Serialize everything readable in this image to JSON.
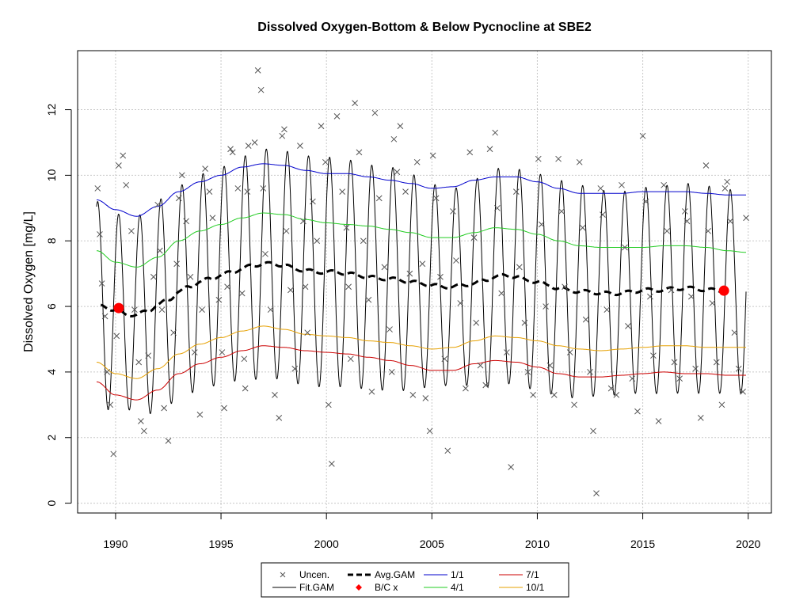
{
  "chart_data": {
    "type": "line",
    "title": "Dissolved Oxygen-Bottom & Below Pycnocline at SBE2",
    "xlabel": "",
    "ylabel": "Dissolved Oxygen [mg/L]",
    "xlim": [
      1988.2,
      2021.1
    ],
    "ylim": [
      -0.3,
      13.8
    ],
    "x_ticks": [
      1990,
      1995,
      2000,
      2005,
      2010,
      2015,
      2020
    ],
    "y_ticks": [
      0,
      2,
      4,
      6,
      8,
      10,
      12
    ],
    "grid": true,
    "legend_position": "bottom",
    "colors": {
      "avg": "#000000",
      "fit": "#000000",
      "q1": "#0000cc",
      "q4": "#22cc22",
      "q7": "#cc0000",
      "q10": "#e6a000",
      "points": "#555555",
      "bc": "#ff0000"
    },
    "avg_gam": {
      "x": [
        1989.3,
        1990,
        1990.5,
        1991,
        1991.5,
        1992,
        1992.5,
        1993,
        1993.5,
        1994,
        1994.5,
        1995,
        1995.5,
        1996,
        1996.5,
        1997,
        1997.5,
        1998,
        1998.5,
        1999,
        1999.5,
        2000,
        2000.5,
        2001,
        2001.5,
        2002,
        2002.5,
        2003,
        2003.5,
        2004,
        2004.5,
        2005,
        2005.5,
        2006,
        2006.5,
        2007,
        2007.5,
        2008,
        2008.5,
        2009,
        2009.5,
        2010,
        2010.5,
        2011,
        2011.5,
        2012,
        2012.5,
        2013,
        2013.5,
        2014,
        2014.5,
        2015,
        2015.5,
        2016,
        2016.5,
        2017,
        2017.5,
        2018,
        2018.5,
        2019
      ],
      "values": [
        6.0,
        5.9,
        5.75,
        5.75,
        5.85,
        6.05,
        6.2,
        6.45,
        6.6,
        6.75,
        6.85,
        6.95,
        7.05,
        7.15,
        7.25,
        7.3,
        7.3,
        7.25,
        7.15,
        7.1,
        7.05,
        7.05,
        7.05,
        7.0,
        6.95,
        6.9,
        6.85,
        6.85,
        6.8,
        6.75,
        6.7,
        6.65,
        6.6,
        6.6,
        6.65,
        6.7,
        6.8,
        6.9,
        6.95,
        6.9,
        6.8,
        6.75,
        6.65,
        6.55,
        6.5,
        6.45,
        6.45,
        6.4,
        6.4,
        6.4,
        6.45,
        6.5,
        6.5,
        6.5,
        6.55,
        6.55,
        6.55,
        6.5,
        6.5,
        6.45
      ]
    },
    "fit_gam": {
      "description_series": "seasonal oscillation around Avg.GAM",
      "x_start": 1989.1,
      "x_end": 2019.9,
      "period_years": 1.0,
      "phase_peak_year_fraction": 0.15,
      "amplitude": [
        [
          1989.1,
          3.2
        ],
        [
          1990.5,
          2.9
        ],
        [
          1992,
          3.2
        ],
        [
          1995,
          3.3
        ],
        [
          1997,
          3.5
        ],
        [
          2000,
          3.5
        ],
        [
          2003,
          3.4
        ],
        [
          2006,
          3.0
        ],
        [
          2008,
          3.3
        ],
        [
          2011,
          3.3
        ],
        [
          2014,
          3.1
        ],
        [
          2017,
          3.2
        ],
        [
          2019.9,
          3.1
        ]
      ]
    },
    "quantile_lines": [
      {
        "name": "1/1",
        "color_key": "q1",
        "x": [
          1989.1,
          1990,
          1991,
          1992,
          1993,
          1994,
          1995,
          1996,
          1997,
          1998,
          1999,
          2000,
          2001,
          2002,
          2003,
          2004,
          2005,
          2006,
          2007,
          2008,
          2009,
          2010,
          2011,
          2012,
          2013,
          2014,
          2015,
          2016,
          2017,
          2018,
          2019,
          2019.9
        ],
        "values": [
          9.25,
          8.95,
          8.75,
          9.05,
          9.5,
          9.8,
          10.0,
          10.25,
          10.35,
          10.3,
          10.15,
          10.05,
          10.05,
          9.95,
          9.85,
          9.75,
          9.6,
          9.65,
          9.85,
          9.95,
          9.95,
          9.8,
          9.6,
          9.45,
          9.45,
          9.45,
          9.5,
          9.5,
          9.5,
          9.45,
          9.4,
          9.4
        ]
      },
      {
        "name": "4/1",
        "color_key": "q4",
        "x": [
          1989.1,
          1990,
          1991,
          1992,
          1993,
          1994,
          1995,
          1996,
          1997,
          1998,
          1999,
          2000,
          2001,
          2002,
          2003,
          2004,
          2005,
          2006,
          2007,
          2008,
          2009,
          2010,
          2011,
          2012,
          2013,
          2014,
          2015,
          2016,
          2017,
          2018,
          2019,
          2019.9
        ],
        "values": [
          7.7,
          7.35,
          7.2,
          7.5,
          8.0,
          8.3,
          8.5,
          8.7,
          8.85,
          8.8,
          8.65,
          8.55,
          8.5,
          8.45,
          8.35,
          8.25,
          8.1,
          8.1,
          8.25,
          8.4,
          8.35,
          8.2,
          8.0,
          7.85,
          7.8,
          7.8,
          7.8,
          7.85,
          7.85,
          7.8,
          7.7,
          7.65
        ]
      },
      {
        "name": "7/1",
        "color_key": "q7",
        "x": [
          1989.1,
          1990,
          1991,
          1992,
          1993,
          1994,
          1995,
          1996,
          1997,
          1998,
          1999,
          2000,
          2001,
          2002,
          2003,
          2004,
          2005,
          2006,
          2007,
          2008,
          2009,
          2010,
          2011,
          2012,
          2013,
          2014,
          2015,
          2016,
          2017,
          2018,
          2019,
          2019.9
        ],
        "values": [
          3.7,
          3.3,
          3.15,
          3.45,
          3.95,
          4.25,
          4.45,
          4.65,
          4.8,
          4.75,
          4.65,
          4.6,
          4.55,
          4.45,
          4.35,
          4.2,
          4.05,
          4.05,
          4.25,
          4.35,
          4.3,
          4.15,
          3.95,
          3.85,
          3.85,
          3.9,
          3.95,
          4.0,
          3.95,
          3.95,
          3.9,
          3.9
        ]
      },
      {
        "name": "10/1",
        "color_key": "q10",
        "x": [
          1989.1,
          1990,
          1991,
          1992,
          1993,
          1994,
          1995,
          1996,
          1997,
          1998,
          1999,
          2000,
          2001,
          2002,
          2003,
          2004,
          2005,
          2006,
          2007,
          2008,
          2009,
          2010,
          2011,
          2012,
          2013,
          2014,
          2015,
          2016,
          2017,
          2018,
          2019,
          2019.9
        ],
        "values": [
          4.3,
          3.95,
          3.8,
          4.1,
          4.55,
          4.85,
          5.05,
          5.25,
          5.4,
          5.3,
          5.15,
          5.1,
          5.05,
          4.95,
          4.9,
          4.8,
          4.7,
          4.75,
          4.95,
          5.1,
          5.05,
          4.95,
          4.8,
          4.7,
          4.65,
          4.7,
          4.75,
          4.8,
          4.8,
          4.75,
          4.75,
          4.75
        ]
      }
    ],
    "bc_points": {
      "x": [
        1990.15,
        2018.85
      ],
      "values": [
        5.95,
        6.48
      ]
    },
    "scatter_points": {
      "x": [
        1989.15,
        1989.25,
        1989.35,
        1989.5,
        1989.6,
        1989.75,
        1989.9,
        1990.05,
        1990.15,
        1990.35,
        1990.5,
        1990.75,
        1990.9,
        1991.1,
        1991.2,
        1991.35,
        1991.55,
        1991.8,
        1992.0,
        1992.1,
        1992.2,
        1992.3,
        1992.5,
        1992.75,
        1992.9,
        1993.0,
        1993.15,
        1993.35,
        1993.55,
        1993.75,
        1994.0,
        1994.1,
        1994.25,
        1994.45,
        1994.6,
        1994.9,
        1995.05,
        1995.15,
        1995.3,
        1995.45,
        1995.55,
        1995.8,
        1996.0,
        1996.1,
        1996.15,
        1996.25,
        1996.3,
        1996.6,
        1996.75,
        1996.9,
        1997.0,
        1997.1,
        1997.35,
        1997.55,
        1997.75,
        1997.9,
        1998.0,
        1998.1,
        1998.3,
        1998.5,
        1998.75,
        1998.9,
        1999.0,
        1999.1,
        1999.35,
        1999.55,
        1999.75,
        1999.95,
        2000.1,
        2000.25,
        2000.5,
        2000.75,
        2000.95,
        2001.05,
        2001.15,
        2001.35,
        2001.55,
        2001.75,
        2002.0,
        2002.15,
        2002.3,
        2002.5,
        2002.75,
        2003.0,
        2003.1,
        2003.2,
        2003.35,
        2003.5,
        2003.75,
        2003.95,
        2004.1,
        2004.3,
        2004.55,
        2004.7,
        2004.9,
        2005.05,
        2005.2,
        2005.4,
        2005.6,
        2005.75,
        2006.0,
        2006.15,
        2006.35,
        2006.6,
        2006.8,
        2007.0,
        2007.1,
        2007.3,
        2007.55,
        2007.75,
        2008.0,
        2008.1,
        2008.3,
        2008.55,
        2008.75,
        2009.0,
        2009.15,
        2009.4,
        2009.55,
        2009.8,
        2010.05,
        2010.2,
        2010.4,
        2010.6,
        2010.8,
        2011.0,
        2011.15,
        2011.3,
        2011.55,
        2011.75,
        2012.0,
        2012.15,
        2012.3,
        2012.5,
        2012.65,
        2012.8,
        2013.0,
        2013.1,
        2013.3,
        2013.5,
        2013.75,
        2014.0,
        2014.15,
        2014.3,
        2014.5,
        2014.75,
        2015.0,
        2015.15,
        2015.35,
        2015.5,
        2015.75,
        2016.0,
        2016.15,
        2016.35,
        2016.5,
        2016.75,
        2017.0,
        2017.1,
        2017.3,
        2017.5,
        2017.75,
        2018.0,
        2018.1,
        2018.3,
        2018.5,
        2018.75,
        2018.9,
        2019.0,
        2019.15,
        2019.35,
        2019.55,
        2019.75,
        2019.9
      ],
      "values": [
        9.6,
        8.2,
        6.7,
        5.7,
        4.0,
        3.0,
        1.5,
        5.1,
        10.3,
        10.6,
        9.7,
        8.3,
        5.9,
        4.3,
        2.5,
        2.2,
        4.5,
        6.9,
        9.1,
        7.7,
        5.9,
        2.9,
        1.9,
        5.2,
        7.3,
        9.3,
        10.0,
        8.6,
        6.9,
        4.6,
        2.7,
        5.9,
        10.2,
        9.5,
        8.7,
        6.2,
        4.6,
        2.9,
        6.6,
        10.8,
        10.7,
        9.6,
        6.4,
        4.4,
        3.5,
        9.5,
        10.9,
        11.0,
        13.2,
        12.6,
        9.6,
        7.6,
        5.9,
        3.3,
        2.6,
        11.2,
        11.4,
        8.3,
        6.5,
        4.1,
        10.9,
        8.6,
        6.6,
        5.2,
        9.2,
        8.0,
        11.5,
        10.4,
        3.0,
        1.2,
        11.8,
        9.5,
        8.4,
        6.6,
        4.4,
        12.2,
        10.7,
        8.0,
        6.2,
        3.4,
        11.9,
        9.3,
        7.2,
        5.3,
        4.0,
        11.1,
        10.1,
        11.5,
        9.5,
        7.0,
        3.3,
        10.4,
        7.3,
        3.2,
        2.2,
        10.6,
        9.3,
        6.9,
        4.4,
        1.6,
        8.9,
        7.4,
        6.1,
        3.5,
        10.7,
        8.1,
        5.5,
        4.2,
        3.6,
        10.8,
        11.3,
        9.0,
        6.4,
        4.6,
        1.1,
        9.5,
        7.2,
        5.5,
        4.0,
        3.3,
        10.5,
        8.5,
        6.0,
        4.2,
        3.3,
        10.5,
        8.9,
        6.6,
        4.6,
        3.0,
        10.4,
        8.4,
        5.6,
        4.0,
        2.2,
        0.3,
        9.6,
        8.8,
        5.9,
        3.5,
        3.3,
        9.7,
        7.8,
        5.4,
        3.8,
        2.8,
        11.2,
        9.2,
        6.3,
        4.5,
        2.5,
        9.7,
        8.3,
        6.5,
        4.3,
        3.8,
        8.9,
        8.6,
        6.3,
        4.1,
        2.6,
        10.3,
        8.3,
        6.1,
        4.3,
        3.0,
        9.6,
        9.8,
        8.6,
        5.2,
        4.1,
        3.4,
        8.7
      ]
    },
    "legend": [
      {
        "label": "Uncen.",
        "symbol": "x",
        "color_key": "points"
      },
      {
        "label": "Avg.GAM",
        "symbol": "dashed",
        "color_key": "avg"
      },
      {
        "label": "1/1",
        "symbol": "line",
        "color_key": "q1"
      },
      {
        "label": "7/1",
        "symbol": "line",
        "color_key": "q7"
      },
      {
        "label": "Fit.GAM",
        "symbol": "line",
        "color_key": "fit"
      },
      {
        "label": "B/C x",
        "symbol": "diamond",
        "color_key": "bc"
      },
      {
        "label": "4/1",
        "symbol": "line",
        "color_key": "q4"
      },
      {
        "label": "10/1",
        "symbol": "line",
        "color_key": "q10"
      }
    ]
  }
}
